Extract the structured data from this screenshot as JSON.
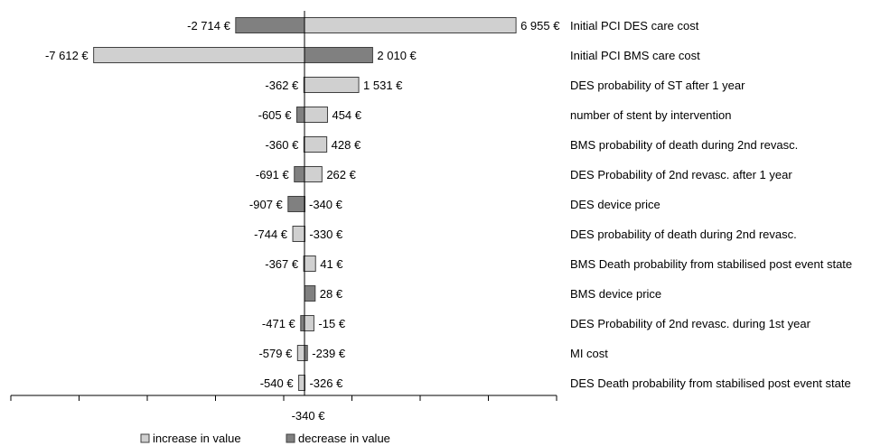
{
  "chart_data": {
    "type": "bar",
    "orientation": "horizontal",
    "subtype": "tornado",
    "baseline_value": -340,
    "baseline_label": "-340 €",
    "xlim": [
      -9000,
      9000
    ],
    "categories": [
      "Initial PCI DES care cost",
      "Initial PCI BMS care cost",
      "DES probability of ST after 1 year",
      "number of stent by intervention",
      "BMS probability of death during 2nd revasc.",
      "DES Probability of 2nd revasc. after 1 year",
      "DES device price",
      "DES probability of death during 2nd revasc.",
      "BMS Death probability from stabilised post event state",
      "BMS device price",
      "DES Probability of 2nd revasc. during 1st year",
      "MI cost",
      "DES Death probability from stabilised post event state"
    ],
    "series": [
      {
        "name": "increase in value",
        "color": "#d0d0d0",
        "values": [
          6955,
          -7612,
          1531,
          454,
          428,
          262,
          -340,
          -744,
          41,
          null,
          -15,
          -579,
          -540
        ]
      },
      {
        "name": "decrease in value",
        "color": "#808080",
        "values": [
          -2714,
          2010,
          -362,
          -605,
          -360,
          -691,
          -907,
          -330,
          -367,
          28,
          -471,
          -239,
          -326
        ]
      }
    ],
    "left_labels": [
      "-2 714 €",
      "-7 612 €",
      "-362 €",
      "-605 €",
      "-360 €",
      "-691 €",
      "-907 €",
      "-744 €",
      "-367 €",
      "",
      "-471 €",
      "-579 €",
      "-540 €"
    ],
    "right_labels": [
      "6 955 €",
      "2 010 €",
      "1 531 €",
      "454 €",
      "428 €",
      "262 €",
      "-340 €",
      "-330 €",
      "41 €",
      "28 €",
      "-15 €",
      "-239 €",
      "-326 €"
    ],
    "legend": {
      "placement": "bottom-left",
      "items": [
        "increase in value",
        "decrease in value"
      ]
    },
    "grid": false
  }
}
